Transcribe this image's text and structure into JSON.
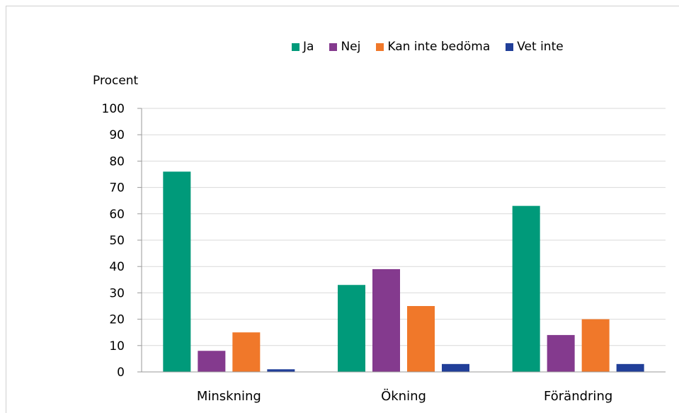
{
  "chart_data": {
    "type": "bar",
    "title": "",
    "xlabel": "",
    "ylabel": "Procent",
    "ylim": [
      0,
      100
    ],
    "yticks": [
      0,
      10,
      20,
      30,
      40,
      50,
      60,
      70,
      80,
      90,
      100
    ],
    "grid": true,
    "legend_position": "top",
    "categories": [
      "Minskning",
      "Ökning",
      "Förändring"
    ],
    "series": [
      {
        "name": "Ja",
        "color": "#009a7a",
        "values": [
          76,
          33,
          63
        ]
      },
      {
        "name": "Nej",
        "color": "#843a8e",
        "values": [
          8,
          39,
          14
        ]
      },
      {
        "name": "Kan inte bedöma",
        "color": "#f0782a",
        "values": [
          15,
          25,
          20
        ]
      },
      {
        "name": "Vet inte",
        "color": "#213f99",
        "values": [
          1,
          3,
          3
        ]
      }
    ]
  }
}
